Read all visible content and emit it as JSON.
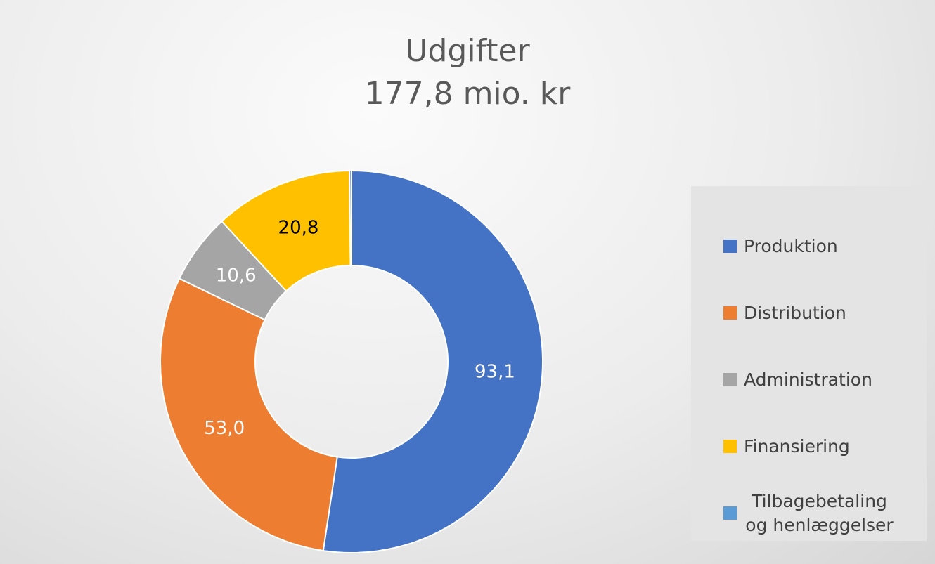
{
  "chart_data": {
    "type": "donut",
    "title": "Udgifter",
    "subtitle": "177,8 mio. kr",
    "categories": [
      "Produktion",
      "Distribution",
      "Administration",
      "Finansiering",
      "Tilbagebetaling og henlæggelser"
    ],
    "values": [
      93.1,
      53.0,
      10.6,
      20.8,
      0.3
    ],
    "value_labels": [
      "93,1",
      "53,0",
      "10,6",
      "20,8",
      null
    ],
    "colors": [
      "#4472c4",
      "#ed7d31",
      "#a5a5a5",
      "#ffc000",
      "#5b9bd5"
    ],
    "label_colors": [
      "#ffffff",
      "#ffffff",
      "#ffffff",
      "#000000",
      "#ffffff"
    ],
    "legend": "right"
  }
}
